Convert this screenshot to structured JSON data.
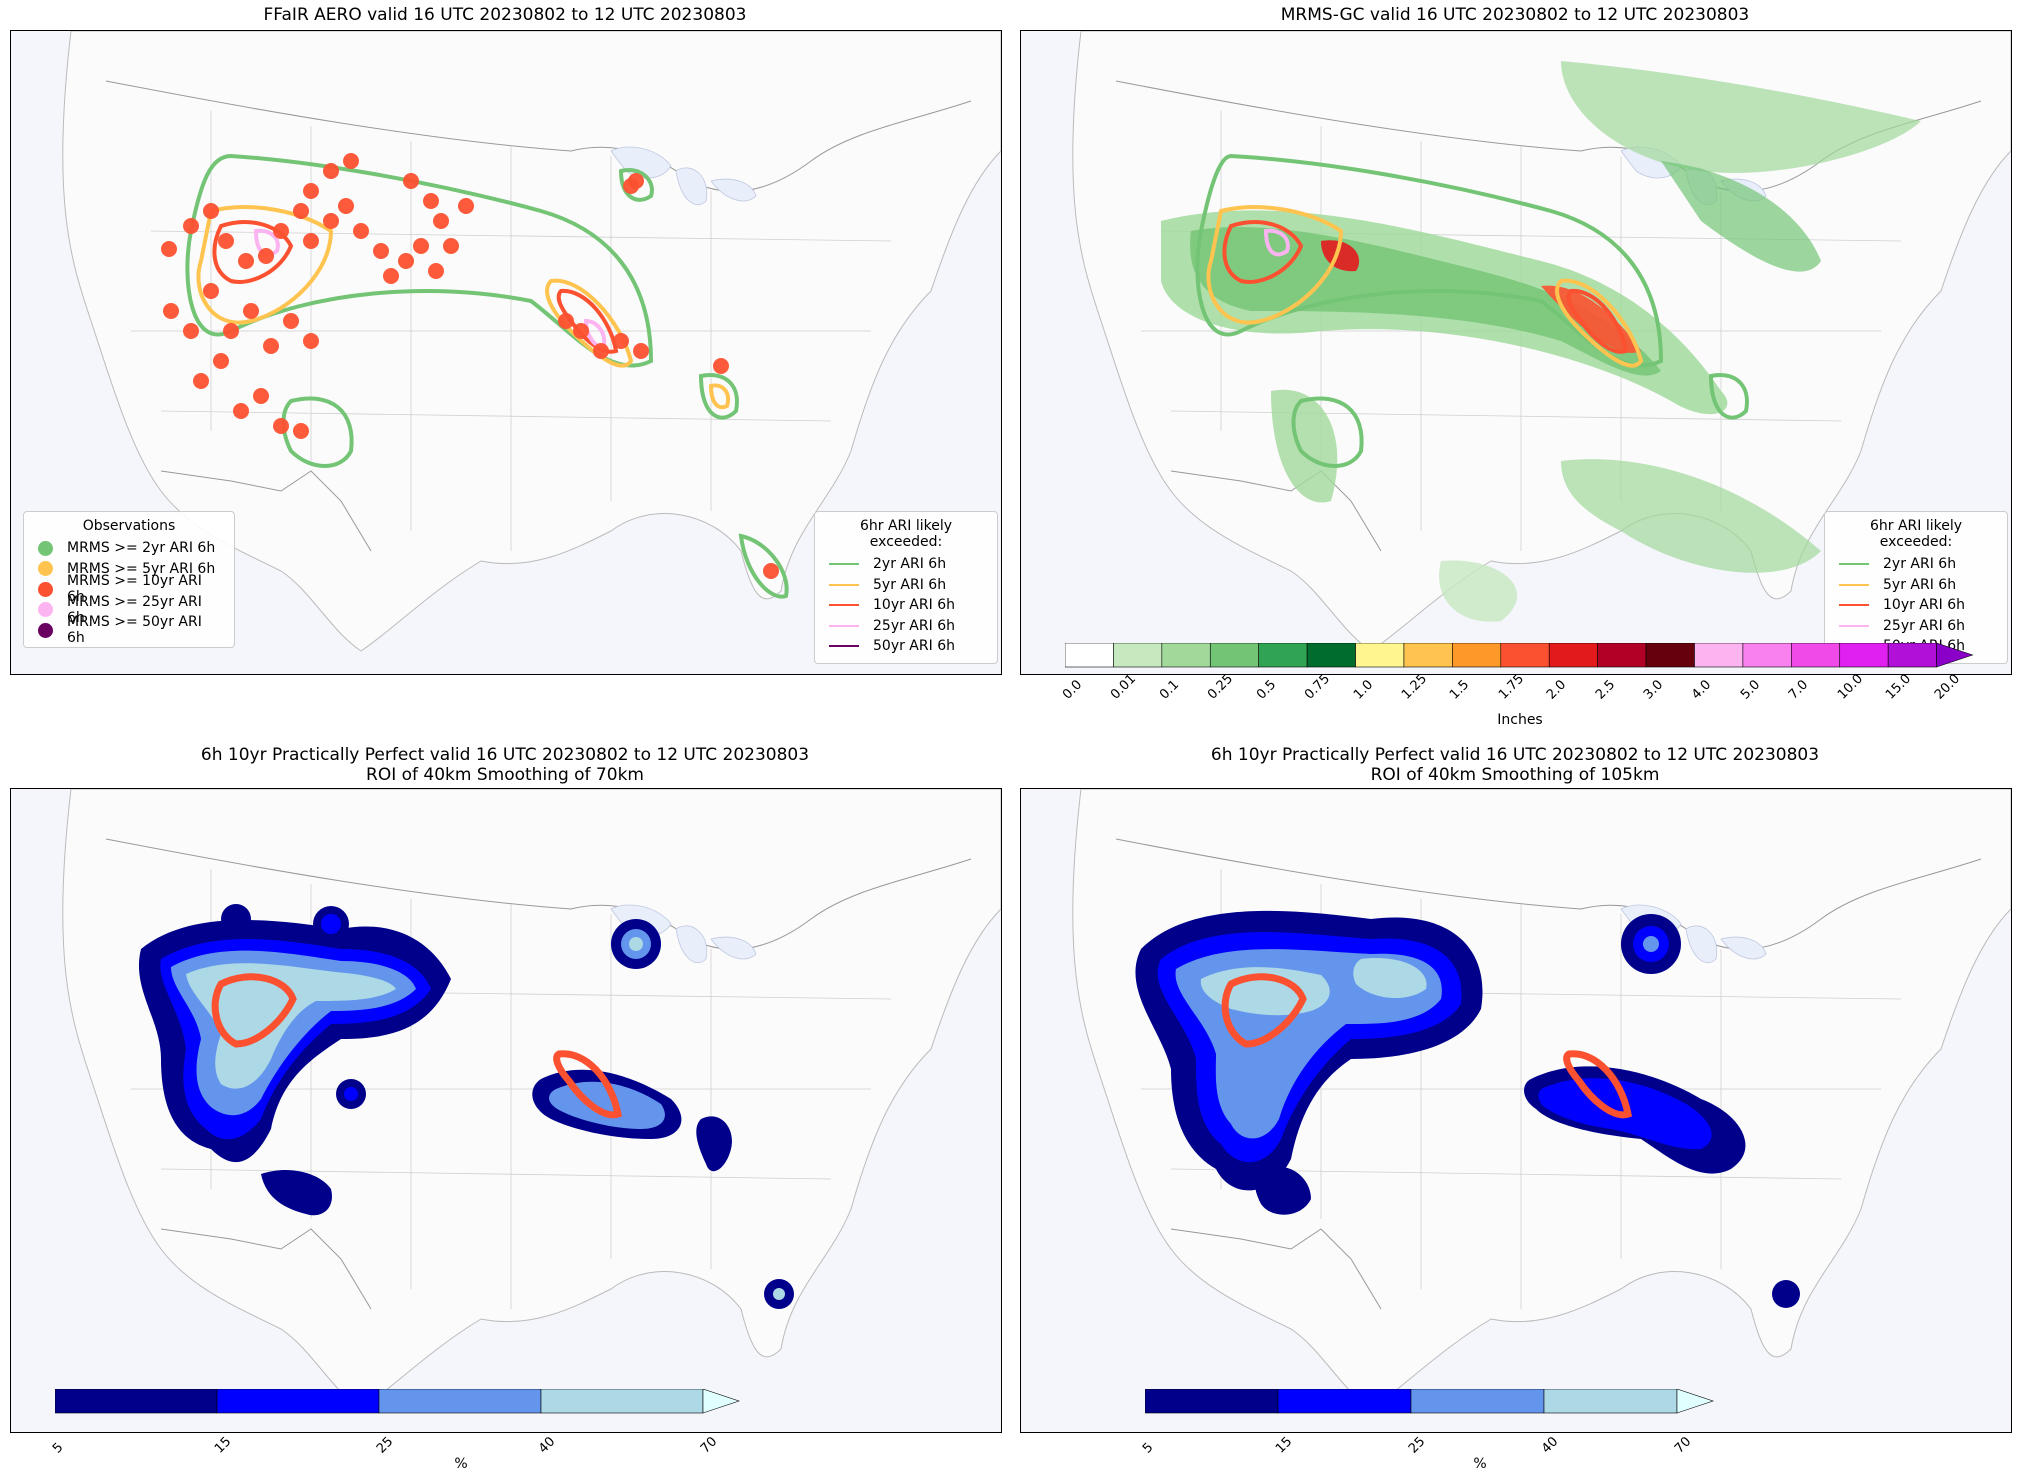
{
  "panels": {
    "p1": {
      "title": "FFaIR AERO valid 16 UTC 20230802 to 12 UTC 20230803"
    },
    "p2": {
      "title": "MRMS-GC valid 16 UTC 20230802 to 12 UTC 20230803"
    },
    "p3": {
      "title": "6h 10yr Practically Perfect valid 16 UTC 20230802 to 12 UTC 20230803\nROI of 40km Smoothing of 70km"
    },
    "p4": {
      "title": "6h 10yr Practically Perfect valid 16 UTC 20230802 to 12 UTC 20230803\nROI of 40km Smoothing of 105km"
    }
  },
  "obs_legend": {
    "title": "Observations",
    "items": [
      {
        "label": "MRMS >= 2yr ARI 6h",
        "color": "#74c476"
      },
      {
        "label": "MRMS >= 5yr ARI 6h",
        "color": "#fec44f"
      },
      {
        "label": "MRMS >= 10yr ARI 6h",
        "color": "#fc5130"
      },
      {
        "label": "MRMS >= 25yr ARI 6h",
        "color": "#fbb4f0"
      },
      {
        "label": "MRMS >= 50yr ARI 6h",
        "color": "#6a0060"
      }
    ]
  },
  "ari_legend": {
    "title": "6hr ARI likely exceeded:",
    "items": [
      {
        "label": "2yr ARI 6h",
        "color": "#74c476"
      },
      {
        "label": "5yr ARI 6h",
        "color": "#fec44f"
      },
      {
        "label": "10yr ARI 6h",
        "color": "#fc5130"
      },
      {
        "label": "25yr ARI 6h",
        "color": "#fbb4f0"
      },
      {
        "label": "50yr ARI 6h",
        "color": "#6a0060"
      }
    ]
  },
  "precip_colorbar": {
    "label": "Inches",
    "ticks": [
      "0.0",
      "0.01",
      "0.1",
      "0.25",
      "0.5",
      "0.75",
      "1.0",
      "1.25",
      "1.5",
      "1.75",
      "2.0",
      "2.5",
      "3.0",
      "4.0",
      "5.0",
      "7.0",
      "10.0",
      "15.0",
      "20.0"
    ],
    "colors": [
      "#ffffff",
      "#c7e9c0",
      "#a1d99b",
      "#74c476",
      "#31a354",
      "#006d2c",
      "#fff68f",
      "#fec44f",
      "#fe9929",
      "#fc5130",
      "#e31a1c",
      "#b10026",
      "#67000d",
      "#fbb4f0",
      "#f880ef",
      "#f04ae8",
      "#e020f0",
      "#b010d8",
      "#8a00c8"
    ]
  },
  "prob_colorbar_70": {
    "label": "%",
    "ticks": [
      "5",
      "15",
      "25",
      "40",
      "70"
    ],
    "colors": [
      "#00008b",
      "#0000ff",
      "#6495ed",
      "#add8e6",
      "#e0ffff"
    ]
  },
  "prob_colorbar_105": {
    "label": "%",
    "ticks": [
      "5",
      "15",
      "25",
      "40",
      "70"
    ],
    "colors": [
      "#00008b",
      "#0000ff",
      "#6495ed",
      "#add8e6",
      "#e0ffff"
    ]
  }
}
